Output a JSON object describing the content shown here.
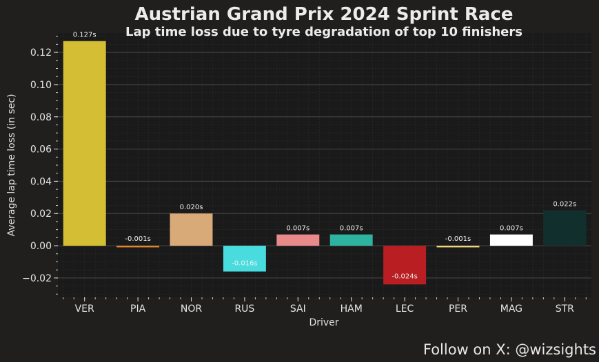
{
  "title": "Austrian Grand Prix 2024 Sprint Race",
  "subtitle": "Lap time loss due to tyre degradation of top 10 finishers",
  "footer": "Follow on X: @wizsights",
  "chart_data": {
    "type": "bar",
    "xlabel": "Driver",
    "ylabel": "Average lap time loss (in sec)",
    "ylim": [
      -0.032,
      0.132
    ],
    "yticks": [
      -0.02,
      0.0,
      0.02,
      0.04,
      0.06,
      0.08,
      0.1,
      0.12
    ],
    "ytick_labels": [
      "−0.02",
      "0.00",
      "0.02",
      "0.04",
      "0.06",
      "0.08",
      "0.10",
      "0.12"
    ],
    "grid": true,
    "categories": [
      "VER",
      "PIA",
      "NOR",
      "RUS",
      "SAI",
      "HAM",
      "LEC",
      "PER",
      "MAG",
      "STR"
    ],
    "values": [
      0.127,
      -0.001,
      0.02,
      -0.016,
      0.007,
      0.007,
      -0.024,
      -0.001,
      0.007,
      0.022
    ],
    "labels": [
      "0.127s",
      "-0.001s",
      "0.020s",
      "-0.016s",
      "0.007s",
      "0.007s",
      "-0.024s",
      "-0.001s",
      "0.007s",
      "0.022s"
    ],
    "colors": [
      "#d4be33",
      "#e8862a",
      "#d8aa78",
      "#48dcdf",
      "#e88a8a",
      "#2db3a0",
      "#b81e22",
      "#f2d87d",
      "#ffffff",
      "#11302d"
    ]
  }
}
